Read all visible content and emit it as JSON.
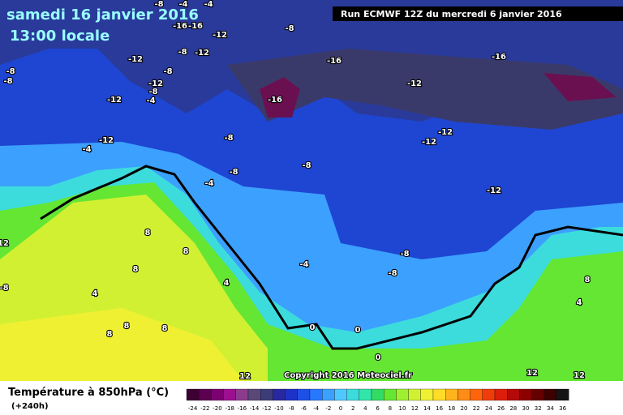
{
  "header": {
    "title": "samedi 16 janvier 2016",
    "subtitle": "13:00 locale",
    "run": "Run ECMWF 12Z du mercredi 6 janvier 2016"
  },
  "copyright": "Copyright 2016 Meteociel.fr",
  "legend": {
    "title": "Température à 850hPa (°C)",
    "lead": "(+240h)",
    "labels": [
      -24,
      -22,
      -20,
      -18,
      -16,
      -14,
      -12,
      -10,
      -8,
      -6,
      -4,
      -2,
      0,
      2,
      4,
      6,
      8,
      10,
      12,
      14,
      16,
      18,
      20,
      22,
      24,
      26,
      28,
      30,
      32,
      34,
      36
    ],
    "colors": [
      "#3c0032",
      "#5c0050",
      "#7c0070",
      "#9c1090",
      "#8c3c8c",
      "#5a4878",
      "#3c3c78",
      "#2828a0",
      "#1e32c8",
      "#1e50e6",
      "#2878ff",
      "#3ca0ff",
      "#50c8ff",
      "#3cdcdc",
      "#32e6aa",
      "#32dc64",
      "#64e632",
      "#a0f032",
      "#d2f032",
      "#f0f032",
      "#ffdc28",
      "#ffb41e",
      "#ff8c14",
      "#ff640a",
      "#f03c0a",
      "#dc1e0a",
      "#b40a0a",
      "#8c0000",
      "#640000",
      "#3c0000",
      "#141414"
    ]
  },
  "map": {
    "contour_labels": [
      -8,
      -4,
      -4,
      -16,
      -16,
      -12,
      -8,
      -12,
      -8,
      -12,
      -8,
      -8,
      -8,
      -12,
      -16,
      -16,
      -12,
      -8,
      -4,
      -12,
      -16,
      -12,
      -4,
      -8,
      -12,
      -12,
      -8,
      -8,
      -4,
      -12,
      8,
      12,
      8,
      8,
      -4,
      -8,
      -8,
      -8,
      4,
      4,
      8,
      4,
      8,
      8,
      8,
      0,
      0,
      0,
      12,
      12,
      12
    ]
  }
}
